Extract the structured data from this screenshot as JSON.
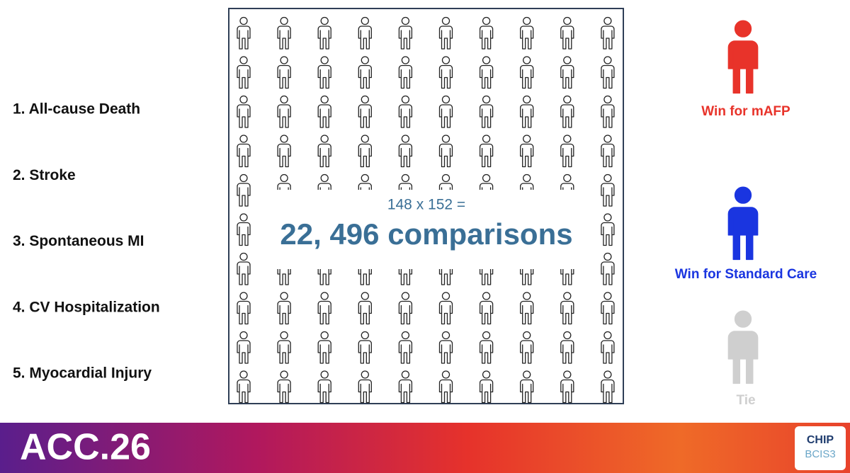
{
  "outcomes": [
    "1. All-cause Death",
    "2. Stroke",
    "3. Spontaneous MI",
    "4. CV Hospitalization",
    "5. Myocardial Injury"
  ],
  "center": {
    "equation": "148 x 152 =",
    "headline": "22, 496 comparisons"
  },
  "legend": [
    {
      "label": "Win for mAFP",
      "color": "#e8332a"
    },
    {
      "label": "Win for Standard Care",
      "color": "#1a35e0"
    },
    {
      "label": "Tie",
      "color": "#cfcfcf"
    }
  ],
  "footer": {
    "brand": "ACC.26",
    "logo_top": "CHIP",
    "logo_bottom": "BCIS3"
  }
}
